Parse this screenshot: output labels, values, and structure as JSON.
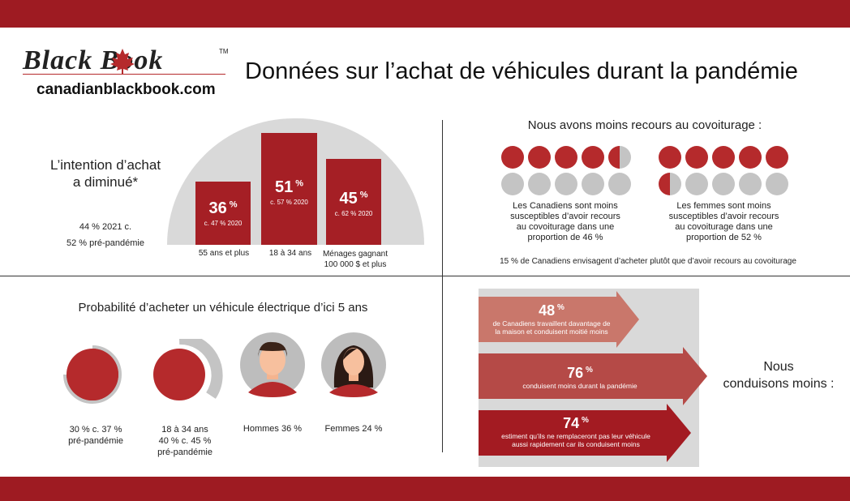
{
  "header": {
    "logo_name": "Black Book",
    "logo_tm": "TM",
    "logo_url": "canadianblackbook.com",
    "title": "Données sur l’achat de véhicules durant la pandémie"
  },
  "intention": {
    "heading_line1": "L’intention d’achat",
    "heading_line2": "a diminué*",
    "note_line1": "44 % 2021 c.",
    "note_line2": "52 % pré-pandémie",
    "bars": [
      {
        "value": "36",
        "unit": "%",
        "sub": "c. 47 % 2020",
        "label": "55 ans et plus"
      },
      {
        "value": "51",
        "unit": "%",
        "sub": "c. 57 % 2020",
        "label": "18 à 34 ans"
      },
      {
        "value": "45",
        "unit": "%",
        "sub": "c. 62 % 2020",
        "label_line1": "Ménages gagnant",
        "label_line2": "100 000 $ et plus"
      }
    ]
  },
  "carpool": {
    "heading": "Nous avons moins recours au covoiturage :",
    "group1": {
      "caption_line1": "Les Canadiens sont moins",
      "caption_line2": "susceptibles d’avoir recours",
      "caption_line3": "au  covoiturage dans une",
      "caption_line4": "proportion de 46 %",
      "value": 46
    },
    "group2": {
      "caption_line1": "Les femmes sont moins",
      "caption_line2": "susceptibles d’avoir recours",
      "caption_line3": "au covoiturage dans une",
      "caption_line4": "proportion de 52 %",
      "value": 52
    },
    "footnote": "15 % de Canadiens envisagent d’acheter plutôt que d’avoir recours au covoiturage"
  },
  "electric": {
    "heading": "Probabilité d’acheter un véhicule électrique d’ici 5 ans",
    "items": [
      {
        "line1": "30 % c. 37 %",
        "line2": "pré-pandémie",
        "value": 30,
        "prior": 37
      },
      {
        "line1": "18 à 34 ans",
        "line2": "40 % c. 45 %",
        "line3": "pré-pandémie",
        "value": 40,
        "prior": 45
      },
      {
        "line1": "Hommes 36 %",
        "value": 36
      },
      {
        "line1": "Femmes 24 %",
        "value": 24
      }
    ]
  },
  "driving": {
    "heading_line1": "Nous",
    "heading_line2": "conduisons moins :",
    "arrows": [
      {
        "value": "48",
        "unit": "%",
        "desc_line1": "de Canadiens travaillent davantage de",
        "desc_line2": "la maison et conduisent moitié moins"
      },
      {
        "value": "76",
        "unit": "%",
        "desc_line1": "conduisent moins durant la pandémie"
      },
      {
        "value": "74",
        "unit": "%",
        "desc_line1": "estiment qu’ils ne remplaceront pas leur véhicule",
        "desc_line2": "aussi rapidement car ils conduisent moins"
      }
    ]
  },
  "colors": {
    "brand_red": "#9e1b22",
    "bar_red": "#a51f25",
    "grey": "#c4c4c4"
  }
}
